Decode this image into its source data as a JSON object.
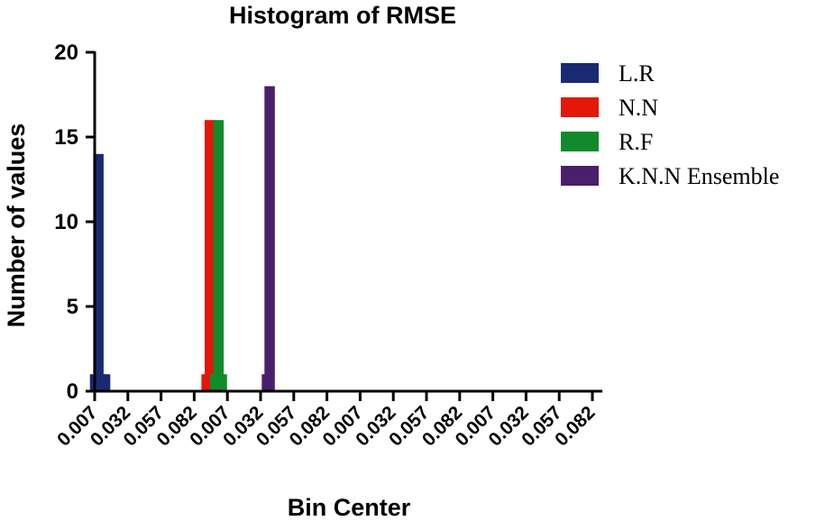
{
  "chart_data": {
    "type": "bar",
    "title": "Histogram of RMSE",
    "xlabel": "Bin Center",
    "ylabel": "Number of values",
    "ylim": [
      0,
      20
    ],
    "yticks": [
      "0",
      "5",
      "10",
      "15",
      "20"
    ],
    "categories": [
      "0.007",
      "0.032",
      "0.057",
      "0.082",
      "0.007",
      "0.032",
      "0.057",
      "0.082",
      "0.007",
      "0.032",
      "0.057",
      "0.082",
      "0.007",
      "0.032",
      "0.057",
      "0.082"
    ],
    "bin_width": 0.025,
    "grid": false,
    "legend_position": "right",
    "series": [
      {
        "name": "L.R",
        "color": "#1a2a72",
        "bins": [
          {
            "x": 0.001,
            "count": 1
          },
          {
            "x": 0.0035,
            "count": 14
          },
          {
            "x": 0.006,
            "count": 1
          },
          {
            "x": 0.0085,
            "count": 1
          }
        ]
      },
      {
        "name": "N.N",
        "color": "#e3170a",
        "bins": [
          {
            "x": 0.085,
            "count": 1
          },
          {
            "x": 0.0875,
            "count": 16
          },
          {
            "x": 0.09,
            "count": 1
          }
        ]
      },
      {
        "name": "R.F",
        "color": "#118a2c",
        "bins": [
          {
            "x": 0.0915,
            "count": 1
          },
          {
            "x": 0.094,
            "count": 16
          },
          {
            "x": 0.0965,
            "count": 1
          }
        ]
      },
      {
        "name": "K.N.N Ensemble",
        "color": "#4a1f6b",
        "bins": [
          {
            "x": 0.1305,
            "count": 1
          },
          {
            "x": 0.1325,
            "count": 18
          }
        ]
      }
    ]
  }
}
